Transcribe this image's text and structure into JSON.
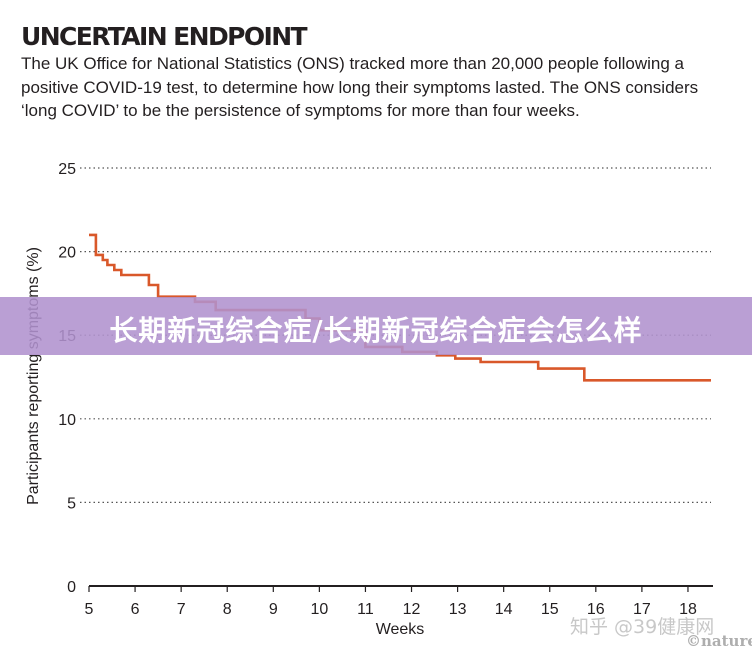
{
  "header": {
    "title": "UNCERTAIN ENDPOINT",
    "description": "The UK Office for National Statistics (ONS) tracked more than 20,000 people following a positive COVID-19 test, to determine how long their symptoms lasted. The ONS considers ‘long COVID’ to be the persistence of symptoms for more than four weeks."
  },
  "banner": {
    "text": "长期新冠综合症/长期新冠综合症会怎么样"
  },
  "watermarks": {
    "zhihu": "知乎 @39健康网",
    "nature": "©nature"
  },
  "colors": {
    "line": "#d9582a",
    "grid": "#555555",
    "banner": "#b092ce"
  },
  "chart_data": {
    "type": "line",
    "xlabel": "Weeks",
    "ylabel": "Participants reporting symptoms (%)",
    "xlim": [
      5,
      18.5
    ],
    "ylim": [
      0,
      25
    ],
    "xticks": [
      5,
      6,
      7,
      8,
      9,
      10,
      11,
      12,
      13,
      14,
      15,
      16,
      17,
      18
    ],
    "yticks": [
      0,
      5,
      10,
      15,
      20,
      25
    ],
    "grid": "horizontal dotted",
    "step": true,
    "series": [
      {
        "x": [
          5.0,
          5.15,
          5.3,
          5.4,
          5.55,
          5.7,
          6.3,
          6.5,
          7.3,
          7.75,
          8.35,
          9.7,
          10.0,
          11.0,
          11.8,
          12.55,
          12.95,
          13.5,
          14.75,
          15.75,
          18.5
        ],
        "y": [
          21.0,
          19.8,
          19.5,
          19.2,
          18.9,
          18.6,
          18.0,
          17.3,
          17.0,
          16.5,
          16.5,
          16.0,
          15.3,
          14.3,
          14.0,
          13.8,
          13.6,
          13.4,
          13.0,
          12.3,
          12.3
        ]
      }
    ]
  }
}
